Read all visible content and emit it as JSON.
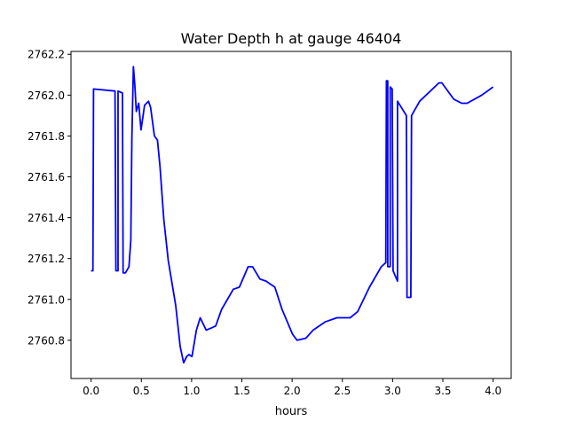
{
  "chart_data": {
    "type": "line",
    "title": "Water Depth h at gauge 46404",
    "xlabel": "hours",
    "ylabel": "",
    "xlim": [
      -0.2,
      4.18
    ],
    "ylim": [
      2760.613,
      2762.214
    ],
    "xticks": [
      0.0,
      0.5,
      1.0,
      1.5,
      2.0,
      2.5,
      3.0,
      3.5,
      4.0
    ],
    "xtick_labels": [
      "0.0",
      "0.5",
      "1.0",
      "1.5",
      "2.0",
      "2.5",
      "3.0",
      "3.5",
      "4.0"
    ],
    "yticks": [
      2760.8,
      2761.0,
      2761.2,
      2761.4,
      2761.6,
      2761.8,
      2762.0,
      2762.2
    ],
    "ytick_labels": [
      "2760.8",
      "2761.0",
      "2761.2",
      "2761.4",
      "2761.6",
      "2761.8",
      "2762.0",
      "2762.2"
    ],
    "grid": false,
    "series": [
      {
        "name": "h",
        "color": "#0000ff",
        "x": [
          0.0,
          0.018,
          0.024,
          0.238,
          0.247,
          0.268,
          0.268,
          0.312,
          0.318,
          0.342,
          0.377,
          0.395,
          0.406,
          0.421,
          0.435,
          0.45,
          0.474,
          0.497,
          0.532,
          0.571,
          0.592,
          0.63,
          0.66,
          0.686,
          0.724,
          0.768,
          0.842,
          0.886,
          0.921,
          0.951,
          0.974,
          1.004,
          1.048,
          1.086,
          1.145,
          1.195,
          1.239,
          1.298,
          1.415,
          1.475,
          1.563,
          1.607,
          1.68,
          1.74,
          1.828,
          1.901,
          2.004,
          2.049,
          2.137,
          2.21,
          2.328,
          2.446,
          2.578,
          2.652,
          2.77,
          2.887,
          2.932,
          2.938,
          2.952,
          2.952,
          2.976,
          2.976,
          2.996,
          3.005,
          3.049,
          3.049,
          3.137,
          3.143,
          3.181,
          3.188,
          3.27,
          3.461,
          3.49,
          3.609,
          3.688,
          3.741,
          3.888,
          4.0
        ],
        "y": [
          2761.14,
          2761.14,
          2762.03,
          2762.02,
          2761.14,
          2761.14,
          2762.02,
          2762.01,
          2761.13,
          2761.13,
          2761.16,
          2761.29,
          2761.79,
          2762.14,
          2762.05,
          2761.92,
          2761.96,
          2761.83,
          2761.95,
          2761.97,
          2761.94,
          2761.8,
          2761.78,
          2761.65,
          2761.39,
          2761.19,
          2760.97,
          2760.77,
          2760.69,
          2760.72,
          2760.73,
          2760.72,
          2760.85,
          2760.91,
          2760.85,
          2760.86,
          2760.87,
          2760.95,
          2761.05,
          2761.06,
          2761.16,
          2761.16,
          2761.1,
          2761.09,
          2761.06,
          2760.95,
          2760.83,
          2760.8,
          2760.81,
          2760.85,
          2760.89,
          2760.91,
          2760.91,
          2760.94,
          2761.06,
          2761.16,
          2761.18,
          2762.07,
          2762.07,
          2761.16,
          2761.16,
          2762.04,
          2762.03,
          2761.14,
          2761.09,
          2761.97,
          2761.9,
          2761.01,
          2761.01,
          2761.9,
          2761.97,
          2762.06,
          2762.06,
          2761.98,
          2761.96,
          2761.96,
          2762.0,
          2762.04
        ]
      }
    ]
  }
}
